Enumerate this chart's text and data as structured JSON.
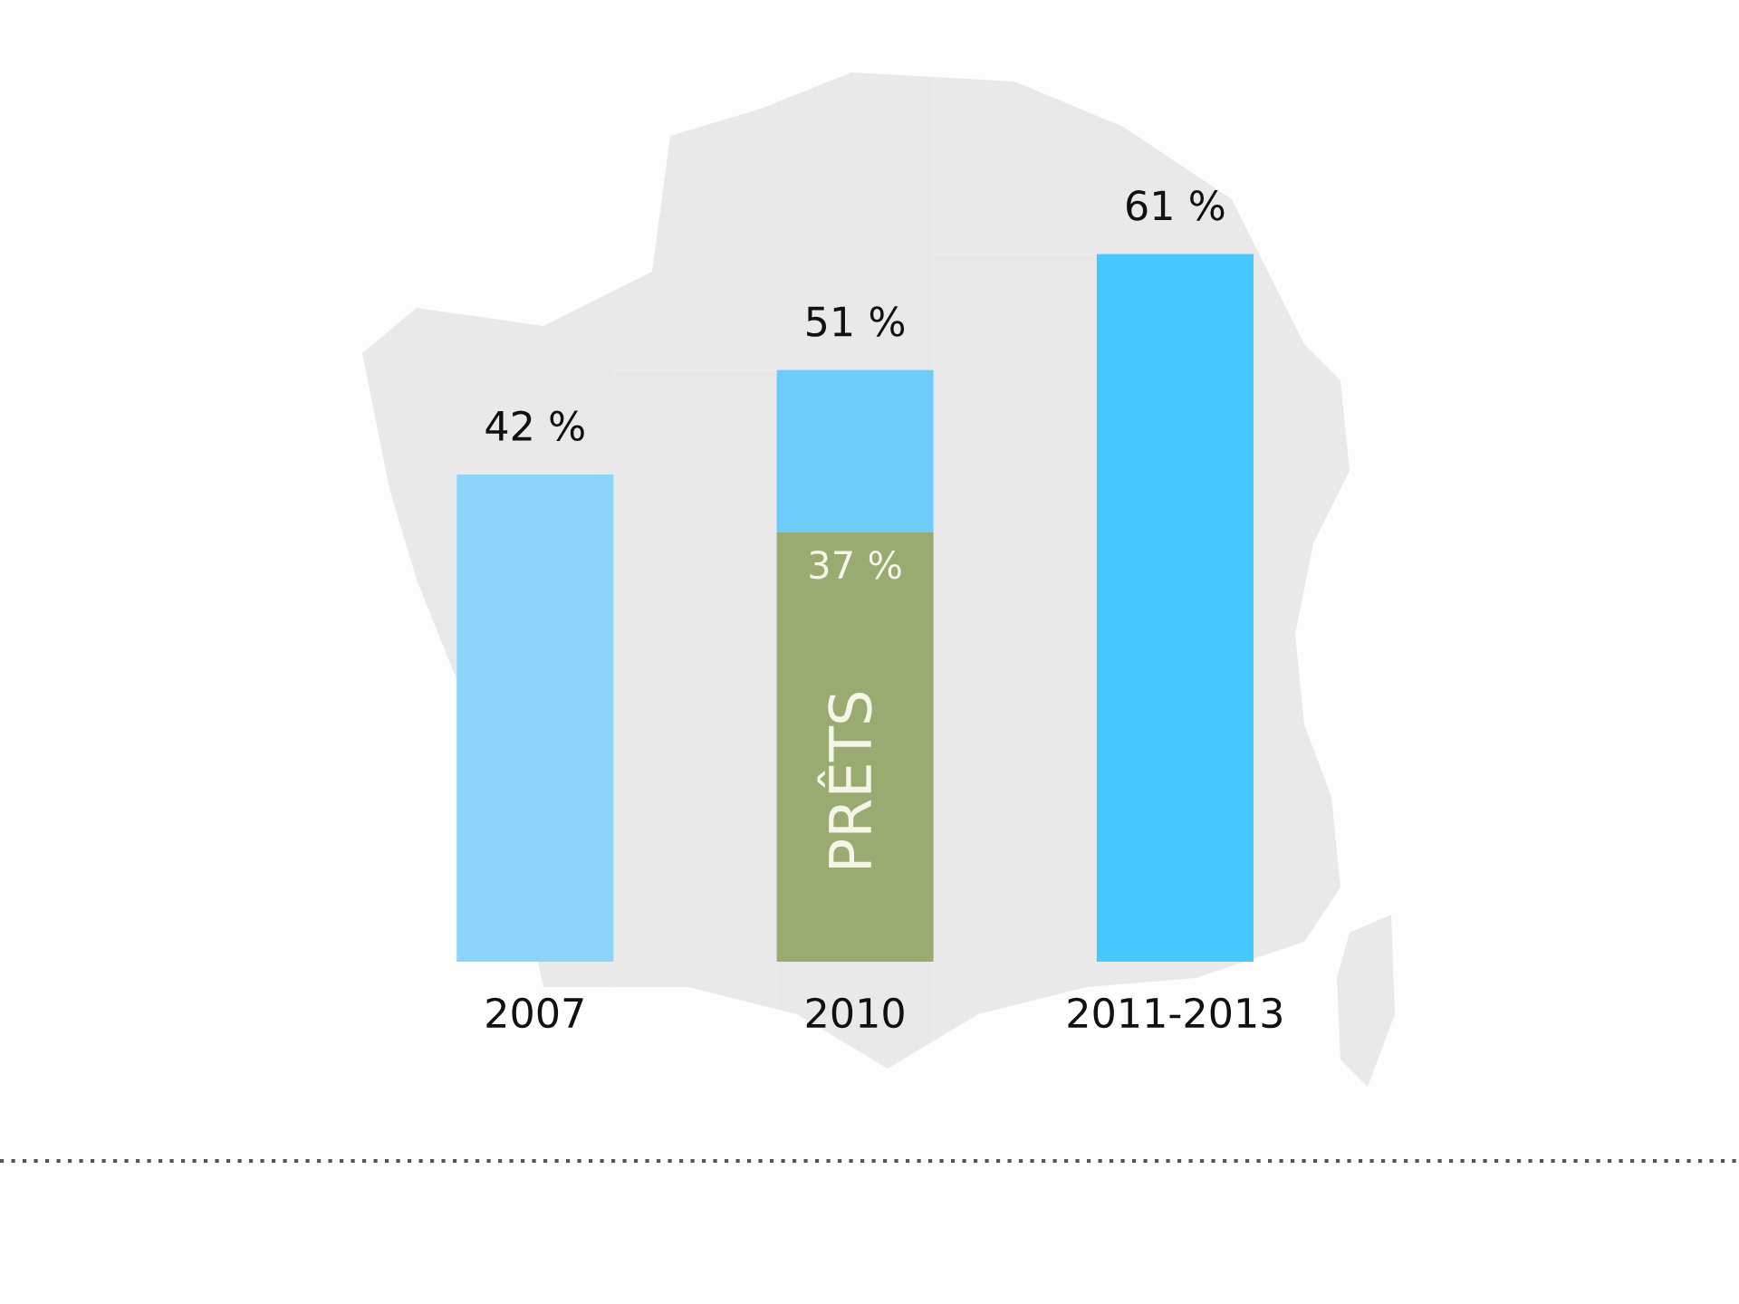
{
  "chart_data": {
    "type": "bar",
    "stacked": true,
    "categories": [
      "2007",
      "2010",
      "2011-2013"
    ],
    "series": [
      {
        "name": "PRÊTS",
        "color": "#9aab72",
        "values": [
          null,
          37,
          null
        ],
        "value_labels": [
          null,
          "37 %",
          null
        ]
      },
      {
        "colors": [
          "#8dd4fb",
          "#6ecbfa",
          "#45c8fc"
        ],
        "values": [
          42,
          14,
          61
        ]
      }
    ],
    "totals": [
      "42 %",
      "51 %",
      "61 %"
    ],
    "tick_labels": "x",
    "grid": false,
    "legend": false
  }
}
